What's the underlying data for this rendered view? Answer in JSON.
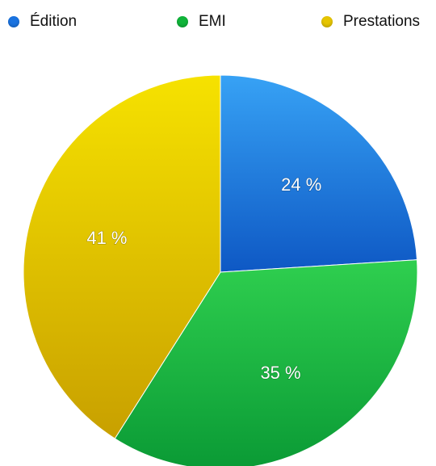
{
  "chart_data": {
    "type": "pie",
    "title": "",
    "legend_position": "top",
    "slices": [
      {
        "name": "Édition",
        "value": 24,
        "label": "24 %",
        "color": "#1a73e0",
        "color_light": "#37a2f5",
        "color_dark": "#0e58c4"
      },
      {
        "name": "EMI",
        "value": 35,
        "label": "35 %",
        "color": "#10b43a",
        "color_light": "#2fcf4f",
        "color_dark": "#0a9a35"
      },
      {
        "name": "Prestations",
        "value": 41,
        "label": "41 %",
        "color": "#e6c500",
        "color_light": "#f6e200",
        "color_dark": "#c8a000"
      }
    ]
  }
}
